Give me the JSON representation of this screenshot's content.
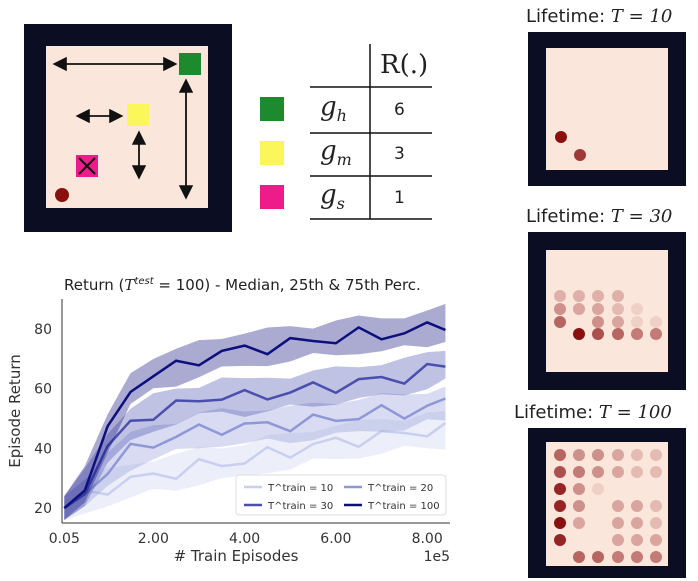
{
  "colors": {
    "env_border": "#0b0d22",
    "env_floor": "#fbe6dc",
    "goal_high": "#1e8a2e",
    "goal_mid": "#fbf75a",
    "goal_small": "#ee1b8a",
    "agent": "#8a0f0f"
  },
  "reward_table": {
    "header": "R(.)",
    "rows": [
      {
        "goal": "g_h",
        "value": "6",
        "color": "#1e8a2e"
      },
      {
        "goal": "g_m",
        "value": "3",
        "color": "#fbf75a"
      },
      {
        "goal": "g_s",
        "value": "1",
        "color": "#ee1b8a"
      }
    ]
  },
  "lifetimes": [
    {
      "label": "Lifetime: ",
      "math": "T = 10"
    },
    {
      "label": "Lifetime: ",
      "math": "T = 30"
    },
    {
      "label": "Lifetime: ",
      "math": "T = 100"
    }
  ],
  "visit_maps": [
    {
      "cols": 6,
      "rows": 6,
      "dots": [
        [
          0,
          4,
          1.0
        ],
        [
          1,
          5,
          0.8
        ]
      ]
    },
    {
      "cols": 6,
      "rows": 6,
      "dots": [
        [
          0,
          0,
          0.25
        ],
        [
          1,
          0,
          0.25
        ],
        [
          2,
          0,
          0.25
        ],
        [
          3,
          0,
          0.25
        ],
        [
          0,
          1,
          0.4
        ],
        [
          1,
          1,
          0.3
        ],
        [
          2,
          1,
          0.3
        ],
        [
          3,
          1,
          0.2
        ],
        [
          4,
          1,
          0.1
        ],
        [
          0,
          2,
          0.6
        ],
        [
          2,
          2,
          0.4
        ],
        [
          3,
          2,
          0.3
        ],
        [
          4,
          2,
          0.1
        ],
        [
          5,
          2,
          0.1
        ],
        [
          1,
          3,
          1.0
        ],
        [
          2,
          3,
          0.7
        ],
        [
          3,
          3,
          0.6
        ],
        [
          4,
          3,
          0.5
        ],
        [
          5,
          3,
          0.5
        ]
      ]
    },
    {
      "cols": 6,
      "rows": 7,
      "dots": [
        [
          0,
          0,
          0.6
        ],
        [
          1,
          0,
          0.4
        ],
        [
          2,
          0,
          0.4
        ],
        [
          3,
          0,
          0.3
        ],
        [
          4,
          0,
          0.2
        ],
        [
          5,
          0,
          0.2
        ],
        [
          0,
          1,
          0.7
        ],
        [
          1,
          1,
          0.5
        ],
        [
          2,
          1,
          0.4
        ],
        [
          3,
          1,
          0.3
        ],
        [
          4,
          1,
          0.2
        ],
        [
          5,
          1,
          0.2
        ],
        [
          0,
          2,
          0.9
        ],
        [
          1,
          2,
          0.4
        ],
        [
          2,
          2,
          0.1
        ],
        [
          0,
          3,
          0.9
        ],
        [
          1,
          3,
          0.4
        ],
        [
          3,
          3,
          0.3
        ],
        [
          4,
          3,
          0.3
        ],
        [
          5,
          3,
          0.2
        ],
        [
          0,
          4,
          1.0
        ],
        [
          1,
          4,
          0.3
        ],
        [
          3,
          4,
          0.3
        ],
        [
          4,
          4,
          0.3
        ],
        [
          5,
          4,
          0.2
        ],
        [
          0,
          5,
          0.9
        ],
        [
          3,
          5,
          0.3
        ],
        [
          4,
          5,
          0.3
        ],
        [
          5,
          5,
          0.3
        ],
        [
          1,
          6,
          0.6
        ],
        [
          2,
          6,
          0.6
        ],
        [
          3,
          6,
          0.5
        ],
        [
          4,
          6,
          0.5
        ],
        [
          5,
          6,
          0.5
        ]
      ]
    }
  ],
  "chart_data": {
    "type": "line",
    "title_pre": "Return (",
    "title_sup": "test",
    "title_post": " = 100) - Median, 25th & 75th Perc.",
    "xlabel": "# Train Episodes",
    "ylabel": "Episode Return",
    "x_offset_label": "1e5",
    "xlim": [
      0,
      8.5
    ],
    "ylim": [
      15,
      90
    ],
    "xticks": [
      0.05,
      2.0,
      4.0,
      6.0,
      8.0
    ],
    "xtick_labels": [
      "0.05",
      "2.00",
      "4.00",
      "6.00",
      "8.00"
    ],
    "yticks": [
      20,
      40,
      60,
      80
    ],
    "x": [
      0.05,
      0.5,
      1.0,
      1.5,
      2.0,
      2.5,
      3.0,
      3.5,
      4.0,
      4.5,
      5.0,
      5.5,
      6.0,
      6.5,
      7.0,
      7.5,
      8.0,
      8.4
    ],
    "series": [
      {
        "name": "T^train = 10",
        "color": "#c9cfee",
        "values": [
          20,
          24,
          27,
          29,
          31,
          32,
          34,
          35,
          36,
          38,
          39,
          41,
          42,
          43,
          44,
          45,
          46,
          46
        ]
      },
      {
        "name": "T^train = 20",
        "color": "#8f98d6",
        "values": [
          20,
          25,
          33,
          39,
          42,
          44,
          46,
          47,
          47,
          48,
          48,
          49,
          50,
          51,
          52,
          52,
          54,
          55
        ]
      },
      {
        "name": "T^train = 30",
        "color": "#4a4fae",
        "values": [
          20,
          27,
          40,
          48,
          52,
          54,
          56,
          58,
          57,
          58,
          59,
          60,
          61,
          62,
          63,
          64,
          66,
          68
        ]
      },
      {
        "name": "T^train = 100",
        "color": "#0d0f7d",
        "values": [
          20,
          28,
          45,
          60,
          65,
          67,
          70,
          72,
          73,
          74,
          75,
          76,
          77,
          78,
          78,
          79,
          80,
          82
        ]
      }
    ],
    "legend": {
      "position": "bottom-right",
      "prefix": "T",
      "sup": "train"
    },
    "grid": false
  }
}
